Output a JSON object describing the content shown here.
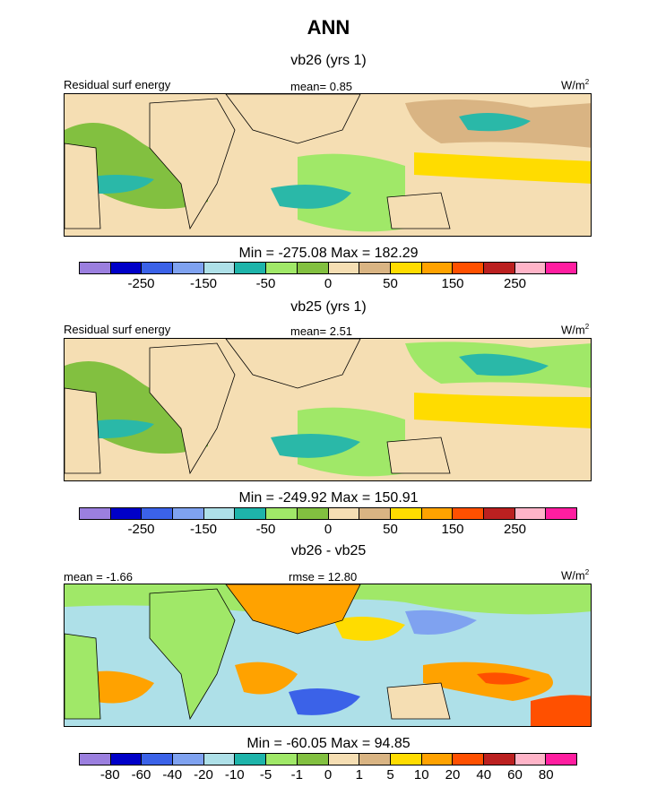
{
  "title": "ANN",
  "colors": {
    "diff_palette": [
      "#9b7fdf",
      "#0000c8",
      "#3b62e8",
      "#7fa2f0",
      "#aee0e8",
      "#1eb4aa",
      "#a0e868",
      "#82c040",
      "#f5deb3",
      "#d9b483",
      "#ffdc00",
      "#ffa200",
      "#ff5000",
      "#bb2020",
      "#ffb4c8",
      "#ff1ea0"
    ],
    "ocean_low": "#2ab8a8",
    "ocean_mid": "#82c040",
    "land": "#f5deb3"
  },
  "panels": [
    {
      "id": "vb26",
      "title": "vb26 (yrs 1)",
      "left_label": "Residual surf energy",
      "center_label": "mean=   0.85",
      "units": "W/m",
      "units_sup": "2",
      "minmax": "Min = -275.08 Max = 182.29",
      "colorbar_ticks": [
        "-250",
        "-150",
        "-50",
        "0",
        "50",
        "150",
        "250"
      ]
    },
    {
      "id": "vb25",
      "title": "vb25 (yrs 1)",
      "left_label": "Residual surf energy",
      "center_label": "mean=   2.51",
      "units": "W/m",
      "units_sup": "2",
      "minmax": "Min = -249.92 Max = 150.91",
      "colorbar_ticks": [
        "-250",
        "-150",
        "-50",
        "0",
        "50",
        "150",
        "250"
      ]
    },
    {
      "id": "diff",
      "title": "vb26 - vb25",
      "left_label": "mean =  -1.66",
      "center_label": "rmse =  12.80",
      "units": "W/m",
      "units_sup": "2",
      "minmax": "Min = -60.05 Max =  94.85",
      "colorbar_ticks": [
        "-80",
        "-60",
        "-40",
        "-20",
        "-10",
        "-5",
        "-1",
        "0",
        "1",
        "5",
        "10",
        "20",
        "40",
        "60",
        "80"
      ]
    }
  ],
  "chart_data": [
    {
      "type": "heatmap",
      "title": "vb26 (yrs 1)",
      "variable": "Residual surf energy",
      "units": "W/m2",
      "mean": 0.85,
      "min": -275.08,
      "max": 182.29,
      "contour_levels": [
        -300,
        -250,
        -200,
        -150,
        -100,
        -50,
        -25,
        0,
        25,
        50,
        100,
        150,
        200,
        250,
        300
      ],
      "colorbar_labels": [
        -250,
        -150,
        -50,
        0,
        50,
        150,
        250
      ]
    },
    {
      "type": "heatmap",
      "title": "vb25 (yrs 1)",
      "variable": "Residual surf energy",
      "units": "W/m2",
      "mean": 2.51,
      "min": -249.92,
      "max": 150.91,
      "contour_levels": [
        -300,
        -250,
        -200,
        -150,
        -100,
        -50,
        -25,
        0,
        25,
        50,
        100,
        150,
        200,
        250,
        300
      ],
      "colorbar_labels": [
        -250,
        -150,
        -50,
        0,
        50,
        150,
        250
      ]
    },
    {
      "type": "heatmap",
      "title": "vb26 - vb25",
      "units": "W/m2",
      "mean": -1.66,
      "rmse": 12.8,
      "min": -60.05,
      "max": 94.85,
      "contour_levels": [
        -80,
        -60,
        -40,
        -20,
        -10,
        -5,
        -1,
        0,
        1,
        5,
        10,
        20,
        40,
        60,
        80
      ],
      "colorbar_labels": [
        -80,
        -60,
        -40,
        -20,
        -10,
        -5,
        -1,
        0,
        1,
        5,
        10,
        20,
        40,
        60,
        80
      ]
    }
  ]
}
